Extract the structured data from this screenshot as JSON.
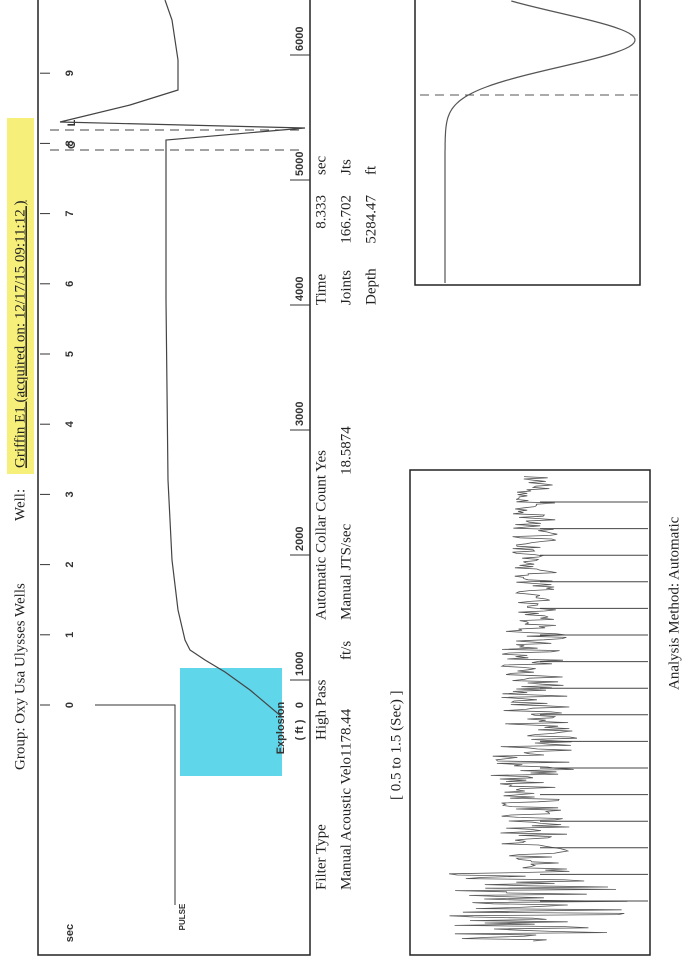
{
  "header": {
    "group": "Group: Oxy Usa Ulysses Wells",
    "well_label": "Well:",
    "well": "Griffin E1 (acquired on: 12/17/15 09:11:12 )"
  },
  "main_chart": {
    "time_axis_label": "sec",
    "time_ticks": [
      "0",
      "1",
      "2",
      "3",
      "4",
      "5",
      "6",
      "7",
      "8",
      "9"
    ],
    "markers": [
      "C",
      "L"
    ],
    "pulse_label": "PULSE",
    "explosion_label": "Explosion",
    "depth_axis_label": "( ft )",
    "depth_ticks": [
      "0",
      "1000",
      "2000",
      "3000",
      "4000",
      "5000",
      "6000"
    ]
  },
  "parameters": {
    "filter_type": "Filter Type",
    "filter_value": "High Pass",
    "velocity": "Manual Acoustic Velo1178.44",
    "velocity_unit": "ft/s",
    "collar_count": "Automatic Collar Count",
    "collar_value": "Yes",
    "jts_sec": "Manual JTS/sec",
    "jts_value": "18.5874",
    "readouts": [
      {
        "label": "Time",
        "value": "8.333",
        "unit": "sec"
      },
      {
        "label": "Joints",
        "value": "166.702",
        "unit": "Jts"
      },
      {
        "label": "Depth",
        "value": "5284.47",
        "unit": "ft"
      }
    ]
  },
  "collar_window": "[ 0.5  to  1.5 (Sec) ]",
  "analysis_method": "Analysis Method:   Automatic"
}
